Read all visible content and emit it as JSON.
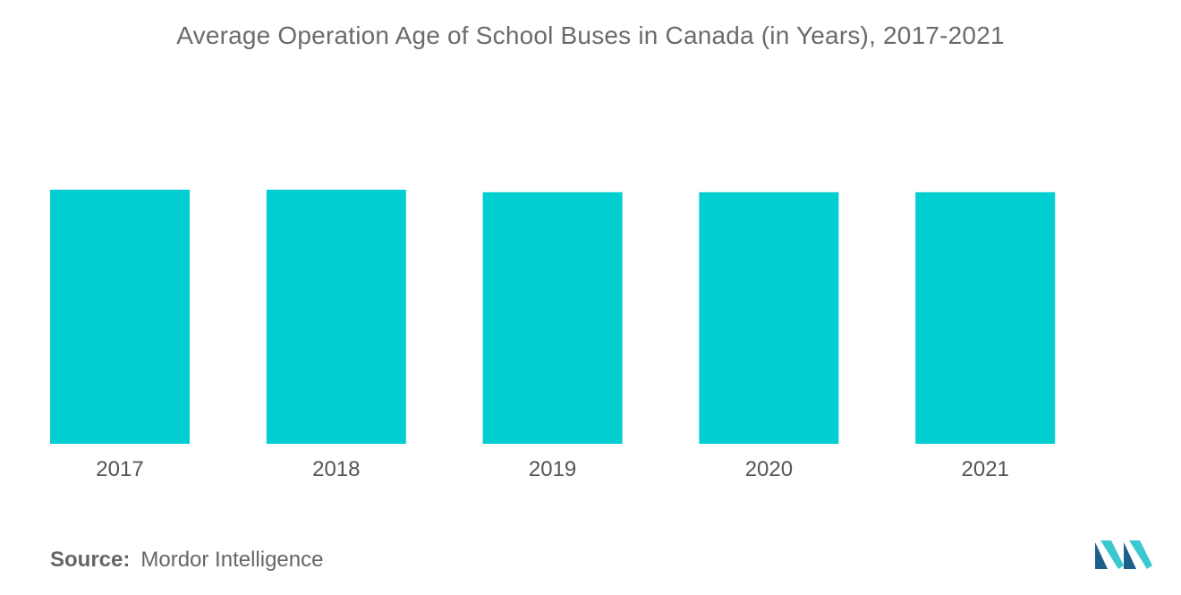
{
  "colors": {
    "bar": "#00CED1",
    "text": "#555555",
    "logo_dark": "#1F5F8B",
    "logo_light": "#3BC8CF"
  },
  "source": {
    "label": "Source:",
    "value": "Mordor Intelligence"
  },
  "logo": {
    "icon": "mordor-intelligence-logo"
  },
  "chart_data": {
    "type": "bar",
    "title": "Average Operation Age of School Buses in Canada (in Years),  2017-2021",
    "xlabel": "",
    "ylabel": "",
    "categories": [
      "2017",
      "2018",
      "2019",
      "2020",
      "2021"
    ],
    "values": [
      10,
      10,
      9.9,
      9.9,
      9.9
    ],
    "ylim": [
      0,
      10
    ],
    "grid": false,
    "legend": "none"
  }
}
